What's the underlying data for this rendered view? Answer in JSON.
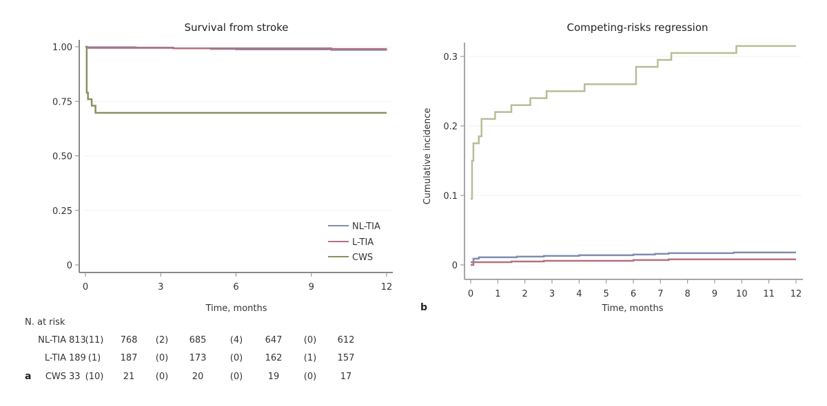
{
  "chart_data": [
    {
      "id": "a",
      "type": "line",
      "step": true,
      "title": "Survival from stroke",
      "xlabel": "Time, months",
      "ylabel": "",
      "xlim": [
        0,
        12
      ],
      "ylim": [
        0,
        1.0
      ],
      "xticks": [
        0,
        3,
        6,
        9,
        12
      ],
      "yticks": [
        0,
        0.25,
        0.5,
        0.75,
        1.0
      ],
      "ytick_labels": [
        "0",
        "0.25",
        "0.50",
        "0.75",
        "1.00"
      ],
      "grid": true,
      "legend": "bottom-right",
      "series": [
        {
          "name": "NL-TIA",
          "color": "#7f8cb0",
          "points": [
            [
              0,
              1.0
            ],
            [
              0.05,
              0.998
            ],
            [
              2,
              0.996
            ],
            [
              3.5,
              0.993
            ],
            [
              5,
              0.99
            ],
            [
              6,
              0.988
            ],
            [
              9.8,
              0.986
            ],
            [
              12,
              0.985
            ]
          ]
        },
        {
          "name": "L-TIA",
          "color": "#b5707e",
          "points": [
            [
              0,
              1.0
            ],
            [
              0.05,
              0.995
            ],
            [
              1.3,
              0.995
            ],
            [
              3.5,
              0.993
            ],
            [
              6,
              0.993
            ],
            [
              9.8,
              0.99
            ],
            [
              12,
              0.99
            ]
          ]
        },
        {
          "name": "CWS",
          "color": "#8a9060",
          "points": [
            [
              0,
              1.0
            ],
            [
              0.05,
              0.79
            ],
            [
              0.1,
              0.76
            ],
            [
              0.25,
              0.73
            ],
            [
              0.4,
              0.697
            ],
            [
              12,
              0.697
            ]
          ]
        }
      ],
      "at_risk": {
        "header": "N. at risk",
        "panel_label": "a",
        "rows": [
          {
            "group": "NL-TIA",
            "values": [
              "813",
              "(11)",
              "768",
              "(2)",
              "685",
              "(4)",
              "647",
              "(0)",
              "612"
            ]
          },
          {
            "group": "L-TIA",
            "values": [
              "189",
              "(1)",
              "187",
              "(0)",
              "173",
              "(0)",
              "162",
              "(1)",
              "157"
            ]
          },
          {
            "group": "CWS",
            "values": [
              "33",
              "(10)",
              "21",
              "(0)",
              "20",
              "(0)",
              "19",
              "(0)",
              "17"
            ]
          }
        ]
      }
    },
    {
      "id": "b",
      "type": "line",
      "step": true,
      "title": "Competing-risks regression",
      "xlabel": "Time, months",
      "ylabel": "Cumulative incidence",
      "panel_label": "b",
      "xlim": [
        0,
        12
      ],
      "ylim": [
        0,
        0.32
      ],
      "xticks": [
        0,
        1,
        2,
        3,
        4,
        5,
        6,
        7,
        8,
        9,
        10,
        11,
        12
      ],
      "yticks": [
        0,
        0.1,
        0.2,
        0.3
      ],
      "ytick_labels": [
        "0",
        "0.1",
        "0.2",
        "0.3"
      ],
      "grid": true,
      "series": [
        {
          "name": "NL-TIA",
          "color": "#7f8cb0",
          "points": [
            [
              0,
              0.004
            ],
            [
              0.1,
              0.009
            ],
            [
              0.3,
              0.011
            ],
            [
              1.7,
              0.012
            ],
            [
              2.7,
              0.013
            ],
            [
              4,
              0.014
            ],
            [
              6,
              0.015
            ],
            [
              6.8,
              0.016
            ],
            [
              7.3,
              0.017
            ],
            [
              9.7,
              0.018
            ],
            [
              12,
              0.018
            ]
          ]
        },
        {
          "name": "L-TIA",
          "color": "#b5707e",
          "points": [
            [
              0,
              0.0
            ],
            [
              0.1,
              0.004
            ],
            [
              1.5,
              0.005
            ],
            [
              2.7,
              0.006
            ],
            [
              6,
              0.007
            ],
            [
              7.3,
              0.008
            ],
            [
              9.7,
              0.008
            ],
            [
              12,
              0.008
            ]
          ]
        },
        {
          "name": "CWS",
          "color": "#b9bc96",
          "points": [
            [
              0,
              0.095
            ],
            [
              0.05,
              0.15
            ],
            [
              0.1,
              0.175
            ],
            [
              0.3,
              0.185
            ],
            [
              0.4,
              0.21
            ],
            [
              0.6,
              0.21
            ],
            [
              0.9,
              0.22
            ],
            [
              1.4,
              0.22
            ],
            [
              1.5,
              0.23
            ],
            [
              2.1,
              0.23
            ],
            [
              2.2,
              0.24
            ],
            [
              2.7,
              0.24
            ],
            [
              2.8,
              0.25
            ],
            [
              4.1,
              0.25
            ],
            [
              4.2,
              0.26
            ],
            [
              6.0,
              0.26
            ],
            [
              6.1,
              0.285
            ],
            [
              6.8,
              0.285
            ],
            [
              6.9,
              0.295
            ],
            [
              7.3,
              0.295
            ],
            [
              7.4,
              0.305
            ],
            [
              9.7,
              0.305
            ],
            [
              9.8,
              0.315
            ],
            [
              12,
              0.315
            ]
          ]
        }
      ]
    }
  ]
}
